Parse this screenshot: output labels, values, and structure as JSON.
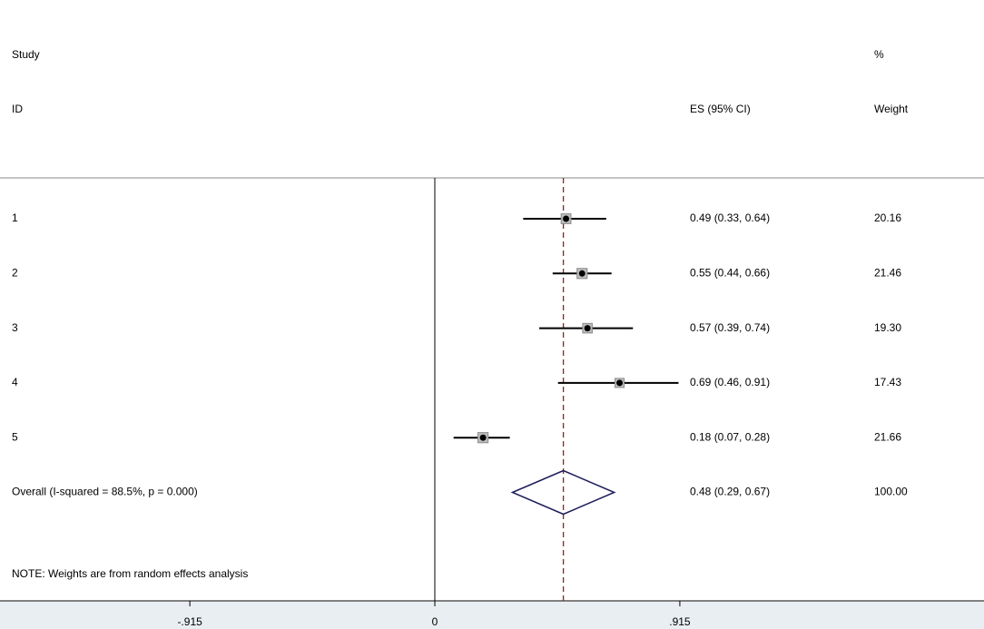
{
  "chart_data": {
    "type": "forest",
    "headers": {
      "study": "Study",
      "id": "ID",
      "es": "ES (95% CI)",
      "pct": "%",
      "weight": "Weight"
    },
    "studies": [
      {
        "name": "1",
        "es": 0.49,
        "lo": 0.33,
        "hi": 0.64,
        "es_label": "0.49 (0.33, 0.64)",
        "weight": 20.16,
        "weight_label": "20.16"
      },
      {
        "name": "2",
        "es": 0.55,
        "lo": 0.44,
        "hi": 0.66,
        "es_label": "0.55 (0.44, 0.66)",
        "weight": 21.46,
        "weight_label": "21.46"
      },
      {
        "name": "3",
        "es": 0.57,
        "lo": 0.39,
        "hi": 0.74,
        "es_label": "0.57 (0.39, 0.74)",
        "weight": 19.3,
        "weight_label": "19.30"
      },
      {
        "name": "4",
        "es": 0.69,
        "lo": 0.46,
        "hi": 0.91,
        "es_label": "0.69 (0.46, 0.91)",
        "weight": 17.43,
        "weight_label": "17.43"
      },
      {
        "name": "5",
        "es": 0.18,
        "lo": 0.07,
        "hi": 0.28,
        "es_label": "0.18 (0.07, 0.28)",
        "weight": 21.66,
        "weight_label": "21.66"
      }
    ],
    "overall": {
      "name": "Overall  (I-squared = 88.5%, p = 0.000)",
      "es": 0.48,
      "lo": 0.29,
      "hi": 0.67,
      "es_label": "0.48 (0.29, 0.67)",
      "weight": 100,
      "weight_label": "100.00"
    },
    "note": "NOTE: Weights are from random effects analysis",
    "xlim": [
      -1.624,
      2.051
    ],
    "xticks": [
      {
        "value": -0.915,
        "label": "-.915"
      },
      0,
      {
        "value": 0.915,
        "label": ".915"
      }
    ]
  }
}
